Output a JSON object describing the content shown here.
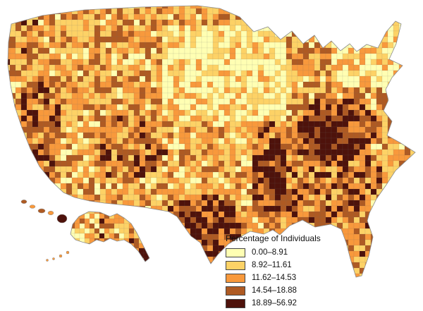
{
  "map": {
    "legend": {
      "title": "Percentage of Individuals",
      "classes": [
        {
          "label": "0.00–8.91",
          "color": "#FFFFB3"
        },
        {
          "label": "8.92–11.61",
          "color": "#FDD266"
        },
        {
          "label": "11.62–14.53",
          "color": "#F8993C"
        },
        {
          "label": "14.54–18.88",
          "color": "#AE5A23"
        },
        {
          "label": "18.89–56.92",
          "color": "#4E120B"
        }
      ]
    }
  }
}
